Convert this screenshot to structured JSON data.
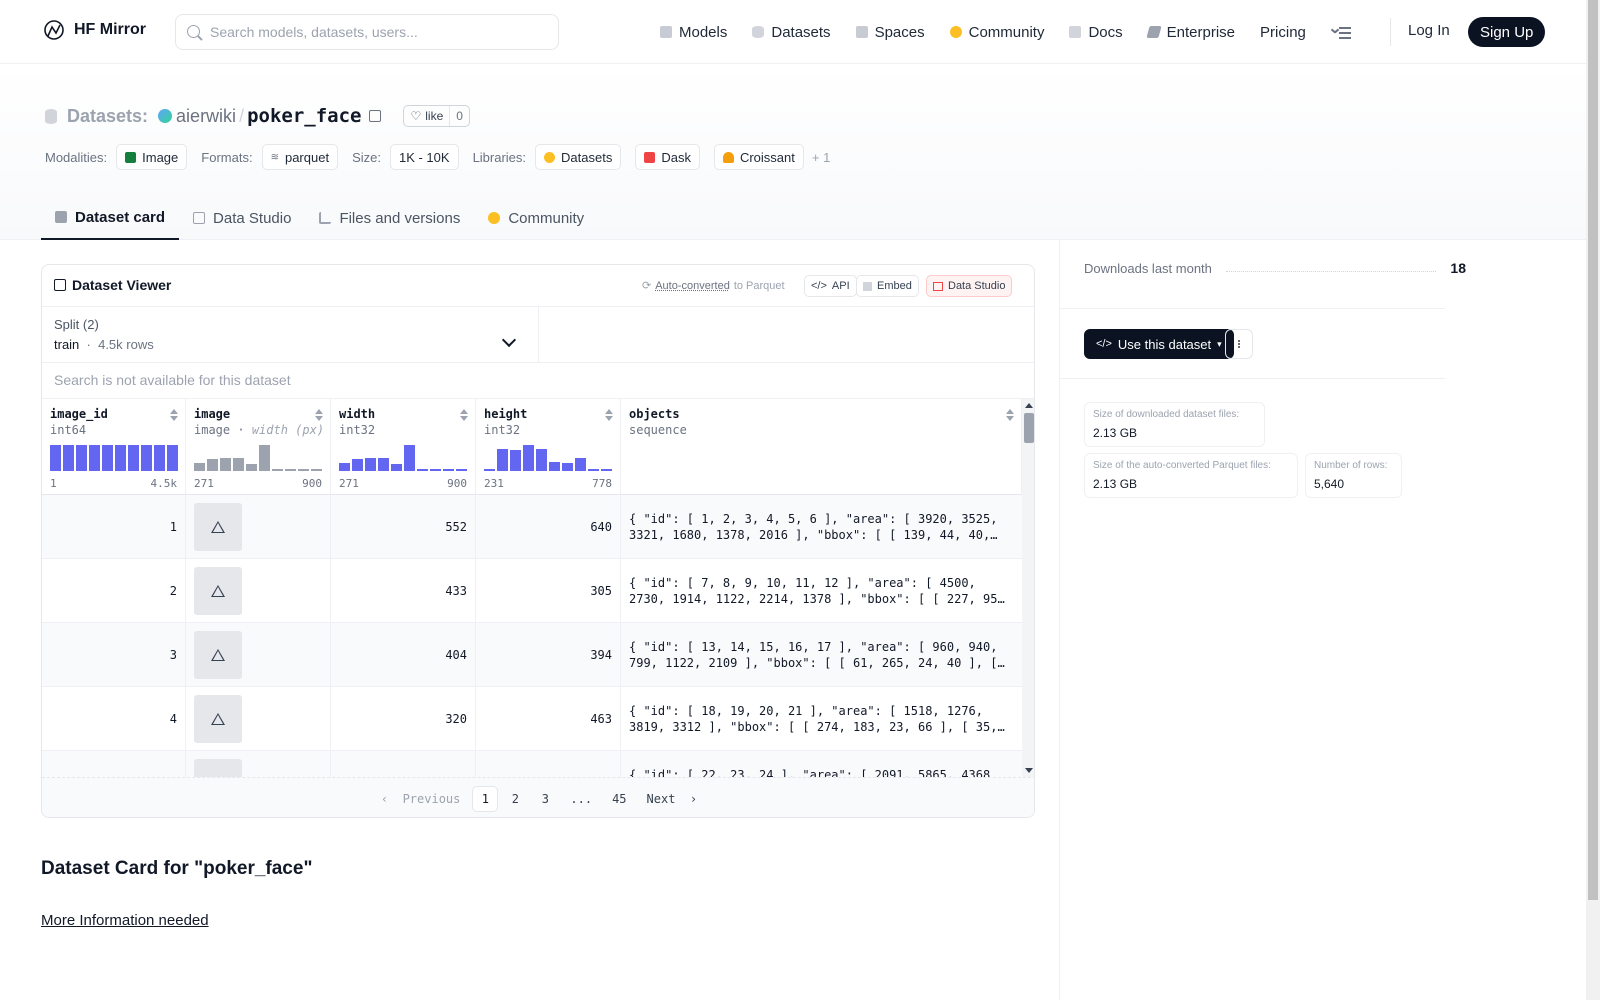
{
  "nav": {
    "brand": "HF Mirror",
    "search_placeholder": "Search models, datasets, users...",
    "links": [
      "Models",
      "Datasets",
      "Spaces",
      "Community",
      "Docs",
      "Enterprise",
      "Pricing"
    ],
    "login": "Log In",
    "signup": "Sign Up"
  },
  "header": {
    "section": "Datasets:",
    "user": "aierwiki",
    "repo": "poker_face",
    "like_label": "like",
    "like_count": "0",
    "modalities_label": "Modalities:",
    "modality": "Image",
    "formats_label": "Formats:",
    "format": "parquet",
    "size_label": "Size:",
    "size": "1K - 10K",
    "libraries_label": "Libraries:",
    "libraries": [
      "Datasets",
      "Dask",
      "Croissant"
    ],
    "libraries_more": "+ 1"
  },
  "tabs": [
    "Dataset card",
    "Data Studio",
    "Files and versions",
    "Community"
  ],
  "viewer": {
    "title": "Dataset Viewer",
    "auto_converted": "Auto-converted",
    "to_parquet": "to Parquet",
    "api": "API",
    "embed": "Embed",
    "data_studio": "Data Studio",
    "split_label": "Split (2)",
    "split_name": "train",
    "split_rows": "4.5k rows",
    "search_placeholder": "Search is not available for this dataset",
    "columns": [
      {
        "name": "image_id",
        "type": "int64",
        "type_extra": "",
        "min": "1",
        "max": "4.5k",
        "hist": [
          1,
          1,
          1,
          1,
          1,
          1,
          1,
          1,
          1,
          1
        ],
        "hist_color": "#6366f1"
      },
      {
        "name": "image",
        "type": "image",
        "type_extra": "width (px)",
        "min": "271",
        "max": "900",
        "hist": [
          0.3,
          0.45,
          0.5,
          0.5,
          0.25,
          1,
          0.05,
          0.05,
          0.05,
          0.05
        ],
        "hist_color": "#9ca3af"
      },
      {
        "name": "width",
        "type": "int32",
        "type_extra": "",
        "min": "271",
        "max": "900",
        "hist": [
          0.3,
          0.45,
          0.5,
          0.5,
          0.25,
          1,
          0.05,
          0.05,
          0.05,
          0.05
        ],
        "hist_color": "#6366f1"
      },
      {
        "name": "height",
        "type": "int32",
        "type_extra": "",
        "min": "231",
        "max": "778",
        "hist": [
          0.05,
          0.85,
          0.8,
          1,
          0.85,
          0.35,
          0.3,
          0.5,
          0.05,
          0.05
        ],
        "hist_color": "#6366f1"
      },
      {
        "name": "objects",
        "type": "sequence",
        "type_extra": "",
        "min": "",
        "max": "",
        "hist": [],
        "hist_color": "#6366f1"
      }
    ],
    "rows": [
      {
        "id": "1",
        "width": "552",
        "height": "640",
        "obj1": "{ \"id\": [ 1, 2, 3, 4, 5, 6 ], \"area\": [ 3920, 3525,",
        "obj2": "3321, 1680, 1378, 2016 ], \"bbox\": [ [ 139, 44, 40,…"
      },
      {
        "id": "2",
        "width": "433",
        "height": "305",
        "obj1": "{ \"id\": [ 7, 8, 9, 10, 11, 12 ], \"area\": [ 4500,",
        "obj2": "2730, 1914, 1122, 2214, 1378 ], \"bbox\": [ [ 227, 95…"
      },
      {
        "id": "3",
        "width": "404",
        "height": "394",
        "obj1": "{ \"id\": [ 13, 14, 15, 16, 17 ], \"area\": [ 960, 940,",
        "obj2": "799, 1122, 2109 ], \"bbox\": [ [ 61, 265, 24, 40 ], […"
      },
      {
        "id": "4",
        "width": "320",
        "height": "463",
        "obj1": "{ \"id\": [ 18, 19, 20, 21 ], \"area\": [ 1518, 1276,",
        "obj2": "3819, 3312 ], \"bbox\": [ [ 274, 183, 23, 66 ], [ 35,…"
      },
      {
        "id": "",
        "width": "",
        "height": "",
        "obj1": "{ \"id\": [ 22, 23, 24 ], \"area\": [ 2091, 5865, 4368",
        "obj2": ""
      }
    ],
    "pager": {
      "prev": "Previous",
      "pages": [
        "1",
        "2",
        "3",
        "...",
        "45"
      ],
      "next": "Next"
    }
  },
  "card": {
    "title": "Dataset Card for \"poker_face\"",
    "more_info": "More Information needed"
  },
  "sidebar": {
    "downloads_label": "Downloads last month",
    "downloads_value": "18",
    "use_button": "Use this dataset",
    "stats": [
      {
        "label": "Size of downloaded dataset files:",
        "value": "2.13 GB"
      },
      {
        "label": "Size of the auto-converted Parquet files:",
        "value": "2.13 GB"
      },
      {
        "label": "Number of rows:",
        "value": "5,640"
      }
    ]
  }
}
